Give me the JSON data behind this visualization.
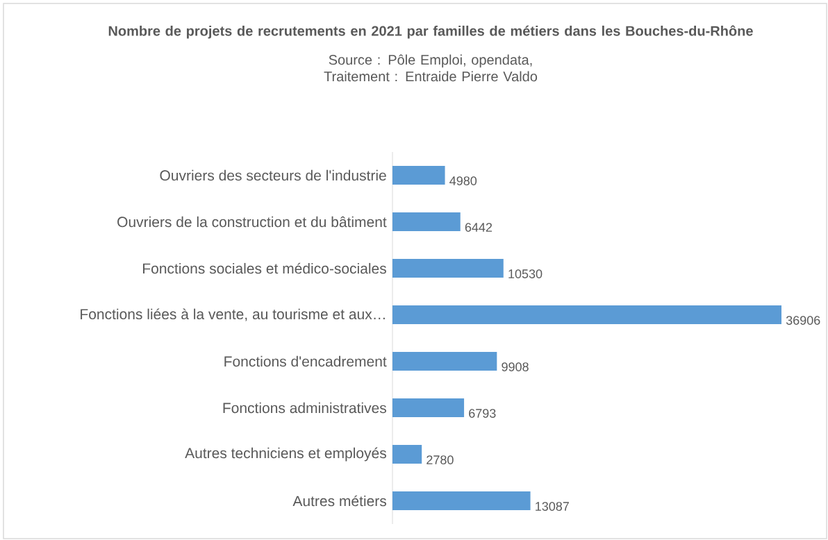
{
  "chart_data": {
    "type": "bar",
    "orientation": "horizontal",
    "title": "Nombre de projets de recrutements en 2021 par familles de métiers dans les Bouches-du-Rhône",
    "subtitle": "Source : Pôle Emploi, opendata, Traitement : Entraide Pierre Valdo",
    "categories": [
      "Ouvriers des secteurs de l'industrie",
      "Ouvriers de la construction et du bâtiment",
      "Fonctions sociales et médico-sociales",
      "Fonctions liées à la vente, au tourisme et aux…",
      "Fonctions d'encadrement",
      "Fonctions administratives",
      "Autres techniciens et employés",
      "Autres métiers"
    ],
    "values": [
      4980,
      6442,
      10530,
      36906,
      9908,
      6793,
      2780,
      13087
    ],
    "color": "#5b9bd5",
    "data_labels": true
  }
}
